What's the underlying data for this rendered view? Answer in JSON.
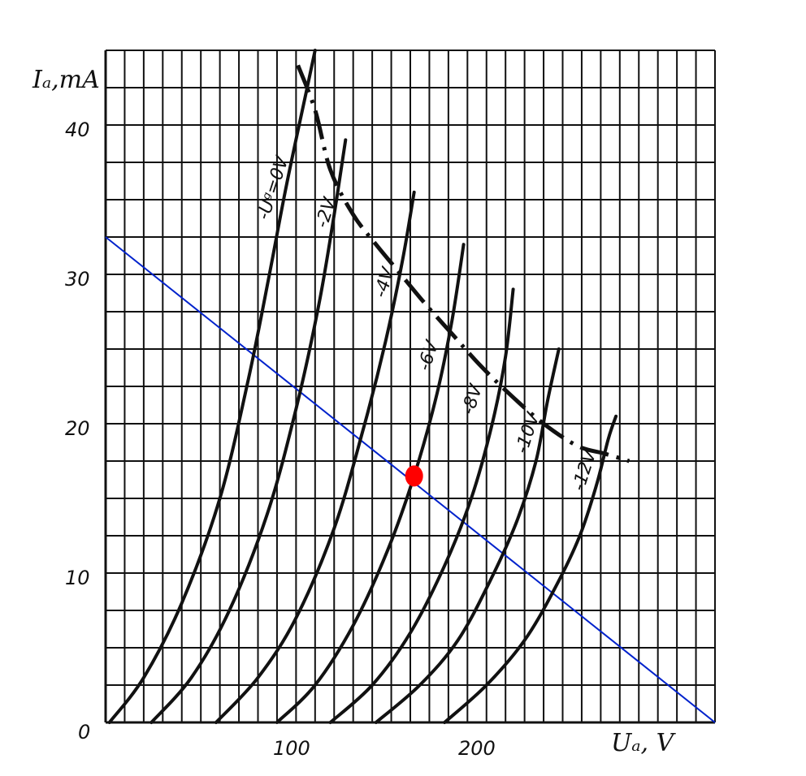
{
  "chart_data": {
    "type": "line",
    "xlabel": "Uₐ, V",
    "ylabel": "Iₐ,mA",
    "xlim": [
      0,
      320
    ],
    "ylim": [
      0,
      45
    ],
    "x_ticks": [
      "100",
      "200"
    ],
    "y_ticks": [
      "10",
      "20",
      "30",
      "40"
    ],
    "origin_label": "0",
    "grid": true,
    "series": [
      {
        "name": "Uᵍ=0V",
        "label": "-Uᵍ=0V",
        "x": [
          2,
          20,
          40,
          60,
          75,
          86,
          95,
          105,
          110
        ],
        "y": [
          0,
          3,
          8,
          15,
          23,
          30,
          36,
          42,
          45
        ]
      },
      {
        "name": "-2V",
        "label": "-2V",
        "x": [
          24,
          45,
          65,
          85,
          100,
          112,
          120,
          126
        ],
        "y": [
          0,
          3,
          7.5,
          14,
          21,
          28,
          34,
          39
        ]
      },
      {
        "name": "-4V",
        "label": "-4V",
        "x": [
          58,
          80,
          100,
          120,
          135,
          147,
          156,
          162
        ],
        "y": [
          0,
          3,
          7,
          13,
          19.5,
          25.5,
          31,
          35.5
        ]
      },
      {
        "name": "-6V",
        "label": "-6V",
        "x": [
          90,
          110,
          130,
          148,
          162,
          174,
          182,
          188
        ],
        "y": [
          0,
          2.5,
          6.5,
          11.5,
          16.5,
          22,
          27,
          32
        ]
      },
      {
        "name": "-8V",
        "label": "-8V",
        "x": [
          118,
          140,
          160,
          178,
          192,
          203,
          210,
          214
        ],
        "y": [
          0,
          2.5,
          6,
          10.5,
          15,
          20,
          24.5,
          29
        ]
      },
      {
        "name": "-10V",
        "label": "-10V",
        "x": [
          142,
          165,
          185,
          202,
          216,
          226,
          232,
          238
        ],
        "y": [
          0,
          2.5,
          5.5,
          9.5,
          13.5,
          17.5,
          21.5,
          25
        ]
      },
      {
        "name": "-12V",
        "label": "-12V",
        "x": [
          178,
          200,
          220,
          236,
          249,
          258,
          264,
          268
        ],
        "y": [
          0,
          2.5,
          5.5,
          9,
          12.5,
          16,
          19,
          20.5
        ]
      }
    ],
    "limit_curve": {
      "x": [
        101,
        110,
        118,
        130,
        142,
        155,
        168,
        182,
        196,
        212,
        230,
        248,
        262,
        275
      ],
      "y": [
        44,
        41,
        37,
        34,
        32,
        30,
        28,
        26,
        24,
        22,
        20,
        18.5,
        18,
        17.5
      ]
    },
    "load_line": {
      "x": [
        0,
        320
      ],
      "y": [
        32.5,
        0
      ],
      "color": "#0022cc"
    },
    "operating_point": {
      "x": 162,
      "y": 16.5,
      "color": "#ff0000"
    },
    "colors": {
      "grid": "#111111",
      "curves": "#111111"
    }
  }
}
